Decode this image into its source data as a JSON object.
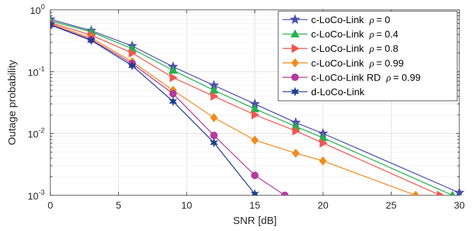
{
  "chart_data": {
    "type": "line",
    "xlabel": "SNR [dB]",
    "ylabel": "Outage probability",
    "xlim": [
      0,
      30
    ],
    "ylim": [
      0.001,
      1
    ],
    "yscale": "log",
    "grid": true,
    "legend_position": "top-right",
    "x_ticks": [
      "0",
      "5",
      "10",
      "15",
      "20",
      "25",
      "30"
    ],
    "y_ticks": [
      {
        "value": 1,
        "base": "10",
        "exp": "0"
      },
      {
        "value": 0.1,
        "base": "10",
        "exp": "-1"
      },
      {
        "value": 0.01,
        "base": "10",
        "exp": "-2"
      },
      {
        "value": 0.001,
        "base": "10",
        "exp": "-3"
      }
    ],
    "series": [
      {
        "name": "c-LoCo-Link",
        "rho": "ρ = 0",
        "color": "#4c4fa8",
        "marker": "star",
        "x": [
          0,
          3,
          6,
          9,
          12,
          15,
          18,
          20,
          30
        ],
        "y": [
          0.7,
          0.46,
          0.26,
          0.12,
          0.06,
          0.03,
          0.015,
          0.01,
          0.0011
        ]
      },
      {
        "name": "c-LoCo-Link",
        "rho": "ρ = 0.4",
        "color": "#23b14d",
        "marker": "triangle-up",
        "x": [
          0,
          3,
          6,
          9,
          12,
          15,
          18,
          20,
          29.5
        ],
        "y": [
          0.66,
          0.44,
          0.235,
          0.105,
          0.05,
          0.025,
          0.013,
          0.0085,
          0.001
        ]
      },
      {
        "name": "c-LoCo-Link",
        "rho": "ρ = 0.8",
        "color": "#f0574f",
        "marker": "triangle-right",
        "x": [
          0,
          3,
          6,
          9,
          12,
          15,
          18,
          20,
          28.6
        ],
        "y": [
          0.62,
          0.39,
          0.2,
          0.08,
          0.04,
          0.02,
          0.011,
          0.007,
          0.001
        ]
      },
      {
        "name": "c-LoCo-Link",
        "rho": "ρ = 0.99",
        "color": "#f08a1c",
        "marker": "diamond",
        "x": [
          0,
          3,
          6,
          9,
          12,
          15,
          18,
          20,
          26.8
        ],
        "y": [
          0.6,
          0.35,
          0.145,
          0.05,
          0.018,
          0.0078,
          0.0048,
          0.0036,
          0.001
        ]
      },
      {
        "name": "c-LoCo-Link RD",
        "rho": "ρ = 0.99",
        "color": "#b53a9e",
        "marker": "circle",
        "x": [
          0,
          3,
          6,
          9,
          12,
          15,
          17.2
        ],
        "y": [
          0.58,
          0.33,
          0.135,
          0.044,
          0.0093,
          0.0021,
          0.001
        ]
      },
      {
        "name": "d-LoCo-Link",
        "rho": "",
        "color": "#1b3f8c",
        "marker": "hexstar",
        "x": [
          0,
          3,
          6,
          9,
          12,
          15
        ],
        "y": [
          0.57,
          0.32,
          0.125,
          0.033,
          0.0071,
          0.00105
        ]
      }
    ]
  }
}
